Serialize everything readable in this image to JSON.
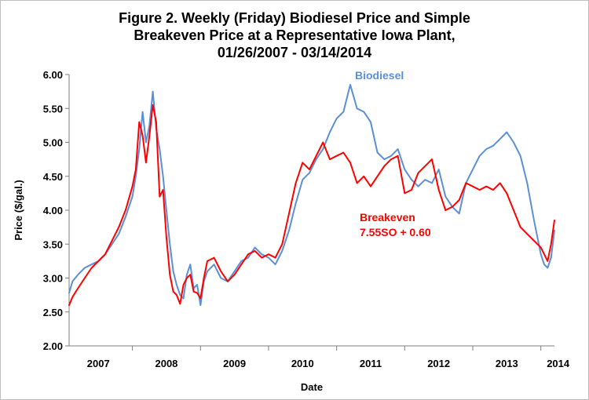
{
  "title_lines": [
    "Figure 2. Weekly (Friday) Biodiesel Price and Simple",
    "Breakeven Price at a Representative Iowa Plant,",
    "01/26/2007  - 03/14/2014"
  ],
  "colors": {
    "biodiesel": "#5b8fd6",
    "breakeven": "#ff0000"
  },
  "chart_data": {
    "type": "line",
    "xlabel": "Date",
    "ylabel": "Price ($/gal.)",
    "ylim": [
      2.0,
      6.0
    ],
    "xlim": [
      2007.07,
      2014.2
    ],
    "y_ticks": [
      "2.00",
      "2.50",
      "3.00",
      "3.50",
      "4.00",
      "4.50",
      "5.00",
      "5.50",
      "6.00"
    ],
    "x_ticks": [
      "2007",
      "2008",
      "2009",
      "2010",
      "2011",
      "2012",
      "2013",
      "2014"
    ],
    "grid": false,
    "annotations": {
      "biodiesel": "Biodiesel",
      "breakeven_line1": "Breakeven",
      "breakeven_line2": "7.55SO + 0.60"
    },
    "series": [
      {
        "name": "Biodiesel",
        "color": "#5b8fd6",
        "x": [
          2007.07,
          2007.12,
          2007.2,
          2007.3,
          2007.4,
          2007.5,
          2007.6,
          2007.7,
          2007.8,
          2007.9,
          2008.0,
          2008.05,
          2008.1,
          2008.15,
          2008.2,
          2008.25,
          2008.3,
          2008.35,
          2008.4,
          2008.45,
          2008.5,
          2008.55,
          2008.6,
          2008.65,
          2008.7,
          2008.75,
          2008.8,
          2008.85,
          2008.9,
          2008.95,
          2009.0,
          2009.05,
          2009.1,
          2009.2,
          2009.3,
          2009.4,
          2009.5,
          2009.6,
          2009.7,
          2009.8,
          2009.9,
          2010.0,
          2010.1,
          2010.2,
          2010.3,
          2010.4,
          2010.5,
          2010.6,
          2010.7,
          2010.8,
          2010.9,
          2011.0,
          2011.1,
          2011.2,
          2011.3,
          2011.4,
          2011.5,
          2011.6,
          2011.7,
          2011.8,
          2011.9,
          2012.0,
          2012.1,
          2012.2,
          2012.3,
          2012.4,
          2012.5,
          2012.6,
          2012.7,
          2012.8,
          2012.9,
          2013.0,
          2013.1,
          2013.2,
          2013.3,
          2013.4,
          2013.5,
          2013.6,
          2013.7,
          2013.8,
          2013.9,
          2014.0,
          2014.05,
          2014.1,
          2014.15,
          2014.2
        ],
        "values": [
          2.78,
          2.95,
          3.05,
          3.15,
          3.2,
          3.25,
          3.35,
          3.5,
          3.65,
          3.9,
          4.2,
          4.5,
          4.9,
          5.45,
          5.0,
          5.25,
          5.75,
          5.2,
          4.9,
          4.5,
          4.0,
          3.5,
          3.1,
          2.9,
          2.75,
          2.7,
          3.05,
          3.2,
          2.85,
          2.9,
          2.6,
          2.95,
          3.1,
          3.2,
          3.0,
          2.95,
          3.1,
          3.25,
          3.3,
          3.45,
          3.35,
          3.3,
          3.2,
          3.4,
          3.7,
          4.1,
          4.45,
          4.55,
          4.75,
          4.9,
          5.15,
          5.35,
          5.45,
          5.85,
          5.5,
          5.45,
          5.3,
          4.85,
          4.75,
          4.8,
          4.9,
          4.6,
          4.45,
          4.35,
          4.45,
          4.4,
          4.6,
          4.2,
          4.05,
          3.95,
          4.4,
          4.6,
          4.8,
          4.9,
          4.95,
          5.05,
          5.15,
          5.0,
          4.8,
          4.4,
          3.85,
          3.35,
          3.2,
          3.15,
          3.3,
          3.7
        ]
      },
      {
        "name": "Breakeven 7.55SO + 0.60",
        "color": "#ff0000",
        "x": [
          2007.07,
          2007.12,
          2007.2,
          2007.3,
          2007.4,
          2007.5,
          2007.6,
          2007.7,
          2007.8,
          2007.9,
          2008.0,
          2008.05,
          2008.1,
          2008.15,
          2008.2,
          2008.25,
          2008.3,
          2008.35,
          2008.4,
          2008.45,
          2008.5,
          2008.55,
          2008.6,
          2008.65,
          2008.7,
          2008.75,
          2008.8,
          2008.85,
          2008.9,
          2008.95,
          2009.0,
          2009.05,
          2009.1,
          2009.2,
          2009.3,
          2009.4,
          2009.5,
          2009.6,
          2009.7,
          2009.8,
          2009.9,
          2010.0,
          2010.1,
          2010.2,
          2010.3,
          2010.4,
          2010.5,
          2010.6,
          2010.7,
          2010.8,
          2010.9,
          2011.0,
          2011.1,
          2011.2,
          2011.3,
          2011.4,
          2011.5,
          2011.6,
          2011.7,
          2011.8,
          2011.9,
          2012.0,
          2012.1,
          2012.2,
          2012.3,
          2012.4,
          2012.5,
          2012.6,
          2012.7,
          2012.8,
          2012.9,
          2013.0,
          2013.1,
          2013.2,
          2013.3,
          2013.4,
          2013.5,
          2013.6,
          2013.7,
          2013.8,
          2013.9,
          2014.0,
          2014.05,
          2014.1,
          2014.15,
          2014.2
        ],
        "values": [
          2.6,
          2.72,
          2.85,
          3.0,
          3.15,
          3.25,
          3.35,
          3.55,
          3.75,
          4.0,
          4.35,
          4.6,
          5.3,
          5.1,
          4.7,
          5.1,
          5.55,
          5.3,
          4.2,
          4.3,
          3.6,
          3.05,
          2.8,
          2.75,
          2.62,
          2.9,
          3.0,
          3.05,
          2.8,
          2.78,
          2.7,
          3.0,
          3.25,
          3.3,
          3.1,
          2.95,
          3.05,
          3.2,
          3.35,
          3.4,
          3.3,
          3.35,
          3.3,
          3.5,
          3.95,
          4.4,
          4.7,
          4.6,
          4.8,
          5.0,
          4.75,
          4.8,
          4.85,
          4.7,
          4.4,
          4.5,
          4.35,
          4.5,
          4.65,
          4.75,
          4.8,
          4.25,
          4.3,
          4.55,
          4.65,
          4.75,
          4.3,
          4.0,
          4.05,
          4.15,
          4.4,
          4.35,
          4.3,
          4.35,
          4.3,
          4.4,
          4.25,
          4.0,
          3.75,
          3.65,
          3.55,
          3.45,
          3.35,
          3.25,
          3.5,
          3.85
        ]
      }
    ]
  }
}
